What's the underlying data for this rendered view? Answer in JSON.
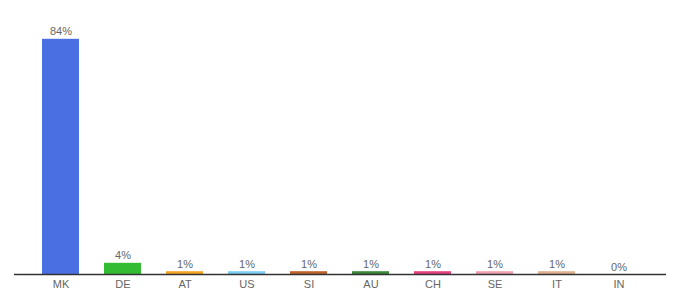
{
  "chart_data": {
    "type": "bar",
    "categories": [
      "MK",
      "DE",
      "AT",
      "US",
      "SI",
      "AU",
      "CH",
      "SE",
      "IT",
      "IN"
    ],
    "values": [
      84,
      4,
      1,
      1,
      1,
      1,
      1,
      1,
      1,
      0
    ],
    "value_labels": [
      "84%",
      "4%",
      "1%",
      "1%",
      "1%",
      "1%",
      "1%",
      "1%",
      "1%",
      "0%"
    ],
    "colors": [
      "#4a6fe3",
      "#33bb33",
      "#f5a623",
      "#7ecef4",
      "#c0622b",
      "#3a8a3a",
      "#e8417e",
      "#f0a0b0",
      "#e0b090",
      "#cccccc"
    ],
    "ylim": [
      0,
      90
    ],
    "data_labels": true,
    "tick_labels": "x"
  }
}
